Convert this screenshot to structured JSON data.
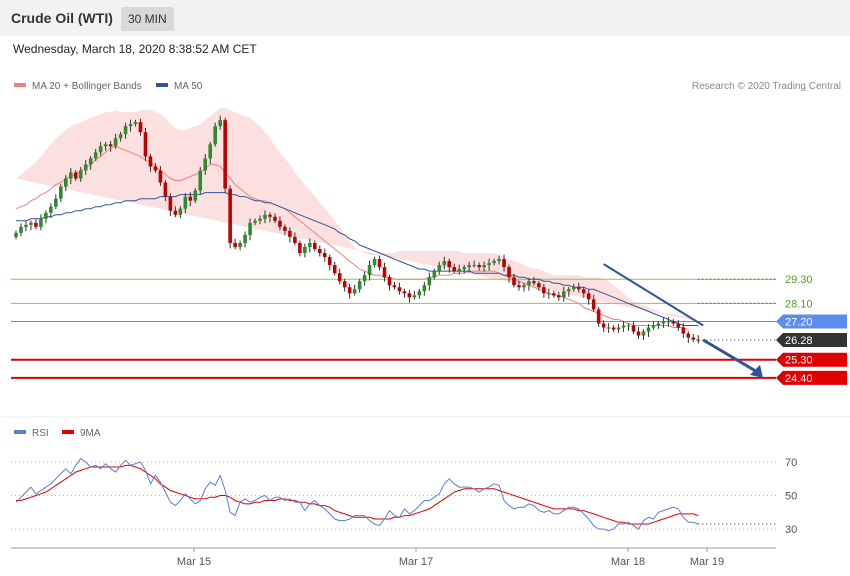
{
  "header": {
    "title": "Crude Oil (WTI)",
    "interval": "30 MIN"
  },
  "timestamp": "Wednesday, March 18, 2020 8:38:52 AM CET",
  "legend": {
    "main": [
      {
        "label": "MA 20 + Bollinger Bands",
        "color": "#f08080"
      },
      {
        "label": "MA 50",
        "color": "#2f5597"
      }
    ],
    "rsi": [
      {
        "label": "RSI",
        "color": "#5b7fd6"
      },
      {
        "label": "9MA",
        "color": "#e00000"
      }
    ]
  },
  "copyright": "Research © 2020 Trading Central",
  "colors": {
    "up": "#2e8b2e",
    "down": "#c00000",
    "support": "#e00000",
    "resistance": "#8fc25a",
    "pivot": "#5b8def",
    "last": "#333333",
    "trend": "#2f5597"
  },
  "chart_data": [
    {
      "type": "candlestick",
      "ylim": [
        23.3,
        38.2
      ],
      "x_ticks": [
        "Mar 15",
        "Mar 17",
        "Mar 18",
        "Mar 19"
      ],
      "levels": [
        {
          "label": "29.30",
          "value": 29.3,
          "kind": "resistance"
        },
        {
          "label": "28.10",
          "value": 28.1,
          "kind": "resistance"
        },
        {
          "label": "27.20",
          "value": 27.2,
          "kind": "pivot"
        },
        {
          "label": "26.28",
          "value": 26.28,
          "kind": "last"
        },
        {
          "label": "25.30",
          "value": 25.3,
          "kind": "support"
        },
        {
          "label": "24.40",
          "value": 24.4,
          "kind": "support"
        }
      ],
      "close": [
        31.6,
        31.9,
        32.0,
        32.1,
        31.9,
        32.3,
        32.6,
        32.9,
        33.3,
        33.9,
        34.3,
        34.6,
        34.3,
        34.7,
        35.0,
        35.3,
        35.6,
        35.9,
        36.0,
        35.9,
        36.3,
        36.5,
        36.9,
        37.0,
        37.1,
        36.6,
        35.4,
        34.9,
        34.7,
        34.1,
        33.4,
        32.7,
        32.5,
        32.8,
        33.4,
        33.2,
        33.7,
        34.7,
        35.3,
        36.0,
        36.9,
        37.2,
        33.8,
        31.1,
        30.9,
        31.1,
        31.5,
        32.1,
        32.2,
        32.3,
        32.5,
        32.4,
        32.2,
        31.9,
        31.7,
        31.4,
        31.1,
        30.6,
        30.9,
        31.1,
        30.8,
        30.6,
        30.4,
        30.0,
        29.6,
        29.2,
        28.9,
        28.6,
        28.8,
        29.2,
        29.5,
        30.0,
        30.3,
        29.9,
        29.4,
        29.0,
        28.9,
        28.7,
        28.6,
        28.4,
        28.5,
        28.7,
        29.0,
        29.4,
        29.7,
        30.0,
        30.2,
        29.9,
        29.7,
        29.8,
        29.9,
        30.0,
        30.0,
        29.9,
        30.0,
        30.1,
        30.2,
        30.3,
        29.9,
        29.4,
        29.0,
        28.9,
        29.0,
        29.2,
        29.1,
        28.9,
        28.6,
        28.6,
        28.5,
        28.4,
        28.7,
        28.8,
        28.9,
        28.8,
        28.6,
        28.3,
        27.8,
        27.1,
        26.9,
        26.9,
        26.8,
        26.9,
        27.0,
        27.0,
        26.7,
        26.5,
        26.7,
        26.9,
        27.0,
        27.1,
        27.2,
        27.2,
        27.1,
        26.9,
        26.6,
        26.4,
        26.3,
        26.28
      ],
      "ma20": [
        32.8,
        32.9,
        33.0,
        33.2,
        33.3,
        33.5,
        33.6,
        33.8,
        34.0,
        34.1,
        34.3,
        34.4,
        34.5,
        34.7,
        34.8,
        35.0,
        35.2,
        35.4,
        35.6,
        35.8,
        35.9,
        35.8,
        35.7,
        35.6,
        35.5,
        35.4,
        35.2,
        35.1,
        34.9,
        34.7,
        34.5,
        34.3,
        34.2,
        34.2,
        34.3,
        34.4,
        34.5,
        34.6,
        34.8,
        35.0,
        35.0,
        34.9,
        34.6,
        34.3,
        34.0,
        33.8,
        33.6,
        33.4,
        33.3,
        33.2,
        33.2,
        33.1,
        33.0,
        32.9,
        32.8,
        32.6,
        32.4,
        32.2,
        32.0,
        31.8,
        31.6,
        31.4,
        31.2,
        31.0,
        30.8,
        30.6,
        30.4,
        30.2,
        30.0,
        29.8,
        29.7,
        29.6,
        29.5,
        29.5,
        29.4,
        29.4,
        29.3,
        29.3,
        29.3,
        29.3,
        29.3,
        29.3,
        29.3,
        29.4,
        29.4,
        29.5,
        29.5,
        29.5,
        29.6,
        29.6,
        29.6,
        29.7,
        29.7,
        29.7,
        29.7,
        29.7,
        29.7,
        29.6,
        29.5,
        29.4,
        29.3,
        29.2,
        29.1,
        29.0,
        28.9,
        28.8,
        28.7,
        28.6,
        28.5,
        28.5,
        28.4,
        28.3,
        28.2,
        28.1,
        27.9,
        27.8,
        27.7,
        27.6,
        27.5,
        27.4,
        27.3,
        27.3,
        27.2,
        27.1,
        27.0,
        27.0,
        27.0,
        27.0,
        27.0,
        27.0,
        27.0,
        27.0,
        26.9,
        26.9,
        26.9,
        26.8
      ],
      "ma50": [
        32.2,
        32.2,
        32.2,
        32.3,
        32.3,
        32.3,
        32.4,
        32.4,
        32.5,
        32.5,
        32.6,
        32.6,
        32.7,
        32.7,
        32.8,
        32.8,
        32.9,
        32.9,
        33.0,
        33.0,
        33.1,
        33.1,
        33.2,
        33.2,
        33.2,
        33.3,
        33.3,
        33.3,
        33.3,
        33.4,
        33.4,
        33.4,
        33.4,
        33.5,
        33.5,
        33.5,
        33.5,
        33.5,
        33.6,
        33.6,
        33.6,
        33.6,
        33.6,
        33.5,
        33.5,
        33.4,
        33.4,
        33.3,
        33.2,
        33.2,
        33.1,
        33.1,
        33.0,
        32.9,
        32.8,
        32.7,
        32.6,
        32.5,
        32.4,
        32.3,
        32.2,
        32.1,
        32.0,
        31.9,
        31.8,
        31.6,
        31.5,
        31.3,
        31.2,
        31.0,
        30.9,
        30.8,
        30.7,
        30.6,
        30.5,
        30.4,
        30.3,
        30.2,
        30.1,
        30.0,
        29.9,
        29.8,
        29.8,
        29.7,
        29.7,
        29.7,
        29.7,
        29.7,
        29.7,
        29.7,
        29.7,
        29.7,
        29.6,
        29.6,
        29.6,
        29.6,
        29.6,
        29.6,
        29.5,
        29.5,
        29.5,
        29.4,
        29.4,
        29.3,
        29.3,
        29.3,
        29.2,
        29.2,
        29.1,
        29.1,
        29.0,
        29.0,
        28.9,
        28.9,
        28.9,
        28.8,
        28.8,
        28.7,
        28.6,
        28.5,
        28.4,
        28.3,
        28.2,
        28.1,
        28.0,
        27.9,
        27.8,
        27.7,
        27.6,
        27.5,
        27.4,
        27.3,
        27.2,
        27.1,
        27.0,
        27.0,
        27.0,
        27.0
      ],
      "bb_upper": [
        34.3,
        34.5,
        34.7,
        34.9,
        35.1,
        35.4,
        35.7,
        36.0,
        36.3,
        36.5,
        36.7,
        36.9,
        37.0,
        37.1,
        37.2,
        37.3,
        37.4,
        37.5,
        37.6,
        37.6,
        37.7,
        37.6,
        37.6,
        37.6,
        37.6,
        37.7,
        37.7,
        37.7,
        37.6,
        37.5,
        37.3,
        37.0,
        36.8,
        36.7,
        36.7,
        36.8,
        36.9,
        37.0,
        37.2,
        37.4,
        37.6,
        37.8,
        37.8,
        37.7,
        37.6,
        37.5,
        37.4,
        37.3,
        37.1,
        36.9,
        36.6,
        36.3,
        35.9,
        35.6,
        35.3,
        35.0,
        34.6,
        34.3,
        34.0,
        33.7,
        33.4,
        33.1,
        32.8,
        32.5,
        32.2,
        31.9,
        31.5,
        31.2,
        30.9,
        30.7,
        30.6,
        30.5,
        30.5,
        30.5,
        30.6,
        30.6,
        30.6,
        30.7,
        30.7,
        30.7,
        30.7,
        30.7,
        30.7,
        30.7,
        30.7,
        30.7,
        30.7,
        30.7,
        30.7,
        30.7,
        30.6,
        30.6,
        30.6,
        30.6,
        30.6,
        30.6,
        30.6,
        30.5,
        30.4,
        30.3,
        30.2,
        30.1,
        30.0,
        29.9,
        29.8,
        29.8,
        29.7,
        29.6,
        29.5,
        29.5,
        29.5,
        29.5,
        29.5,
        29.5,
        29.4,
        29.4,
        29.4,
        29.4,
        29.3,
        29.2,
        29.0,
        28.8,
        28.6,
        28.4,
        28.2,
        28.1,
        28.0,
        27.9,
        27.8,
        27.7,
        27.6,
        27.6,
        27.6,
        27.5,
        27.5,
        27.4,
        27.3,
        27.2
      ],
      "bb_lower": [
        31.3,
        31.3,
        31.3,
        31.5,
        31.5,
        31.6,
        31.5,
        31.6,
        31.7,
        31.7,
        31.9,
        31.9,
        32.0,
        32.3,
        32.4,
        32.7,
        33.0,
        33.3,
        33.6,
        34.0,
        34.1,
        34.0,
        33.8,
        33.6,
        33.4,
        33.1,
        32.7,
        32.5,
        32.2,
        31.9,
        31.7,
        31.6,
        31.6,
        31.7,
        31.9,
        32.0,
        32.1,
        32.2,
        32.4,
        32.6,
        32.4,
        32.0,
        31.4,
        30.9,
        30.4,
        30.1,
        29.8,
        29.5,
        29.5,
        29.5,
        29.8,
        29.9,
        30.1,
        30.2,
        30.3,
        30.2,
        30.2,
        30.1,
        30.0,
        29.9,
        29.8,
        29.7,
        29.6,
        29.5,
        29.4,
        29.3,
        29.3,
        29.2,
        29.1,
        28.9,
        28.8,
        28.7,
        28.5,
        28.5,
        28.2,
        28.2,
        28.0,
        27.9,
        27.9,
        27.9,
        27.9,
        27.9,
        27.9,
        28.1,
        28.1,
        28.3,
        28.3,
        28.3,
        28.5,
        28.5,
        28.6,
        28.8,
        28.8,
        28.8,
        28.8,
        28.8,
        28.8,
        28.7,
        28.6,
        28.5,
        28.4,
        28.3,
        28.2,
        28.1,
        28.0,
        27.8,
        27.7,
        27.6,
        27.5,
        27.5,
        27.3,
        27.1,
        26.9,
        26.7,
        26.4,
        26.2,
        26.0,
        25.8,
        25.7,
        25.6,
        25.6,
        25.8,
        25.8,
        25.8,
        25.8,
        26.1,
        26.2,
        26.3,
        26.4,
        26.4,
        26.4,
        26.5,
        26.5,
        26.6,
        26.5,
        26.4
      ],
      "trendline": [
        [
          30.05,
          118
        ],
        [
          27.0,
          138
        ]
      ],
      "forecast_arrow": [
        [
          26.28,
          138
        ],
        [
          24.4,
          150
        ]
      ]
    },
    {
      "type": "line",
      "name": "rsi",
      "ylim": [
        20,
        80
      ],
      "y_ticks": [
        30,
        50,
        70
      ],
      "series": [
        {
          "name": "RSI",
          "values": [
            46,
            49,
            52,
            55,
            51,
            53,
            55,
            57,
            60,
            63,
            66,
            63,
            68,
            72,
            70,
            67,
            68,
            66,
            69,
            66,
            64,
            68,
            71,
            68,
            69,
            70,
            65,
            57,
            62,
            58,
            52,
            46,
            44,
            47,
            51,
            48,
            45,
            47,
            54,
            58,
            56,
            62,
            53,
            40,
            38,
            46,
            48,
            46,
            47,
            49,
            50,
            47,
            49,
            49,
            47,
            48,
            46,
            46,
            41,
            45,
            47,
            44,
            42,
            39,
            36,
            35,
            35,
            36,
            38,
            38,
            38,
            35,
            33,
            32,
            36,
            41,
            38,
            37,
            42,
            39,
            41,
            44,
            47,
            47,
            49,
            51,
            57,
            60,
            57,
            55,
            55,
            55,
            54,
            52,
            54,
            55,
            57,
            56,
            47,
            44,
            42,
            43,
            43,
            45,
            44,
            41,
            40,
            41,
            39,
            39,
            41,
            43,
            43,
            42,
            39,
            36,
            32,
            30,
            30,
            29,
            30,
            33,
            33,
            34,
            32,
            30,
            35,
            37,
            36,
            40,
            41,
            42,
            43,
            42,
            37,
            34,
            34,
            33
          ]
        },
        {
          "name": "9MA",
          "values": [
            47,
            47,
            48,
            49,
            50,
            51,
            52,
            54,
            56,
            58,
            60,
            62,
            64,
            65,
            66,
            67,
            67,
            67,
            67,
            67,
            67,
            67,
            68,
            68,
            67,
            66,
            64,
            62,
            60,
            57,
            55,
            53,
            52,
            51,
            50,
            49,
            48,
            48,
            48,
            49,
            49,
            50,
            50,
            49,
            47,
            46,
            45,
            45,
            46,
            46,
            47,
            47,
            47,
            48,
            48,
            47,
            47,
            46,
            46,
            45,
            45,
            44,
            44,
            43,
            41,
            40,
            39,
            38,
            37,
            37,
            37,
            37,
            36,
            36,
            36,
            36,
            37,
            37,
            38,
            38,
            39,
            40,
            41,
            42,
            44,
            46,
            48,
            50,
            52,
            53,
            54,
            54,
            54,
            54,
            54,
            54,
            54,
            53,
            52,
            51,
            50,
            49,
            48,
            47,
            46,
            45,
            44,
            43,
            42,
            42,
            42,
            42,
            42,
            41,
            41,
            40,
            39,
            38,
            37,
            36,
            35,
            34,
            34,
            33,
            33,
            33,
            33,
            33,
            34,
            35,
            36,
            37,
            38,
            39,
            39,
            39,
            39,
            38
          ]
        }
      ]
    }
  ]
}
